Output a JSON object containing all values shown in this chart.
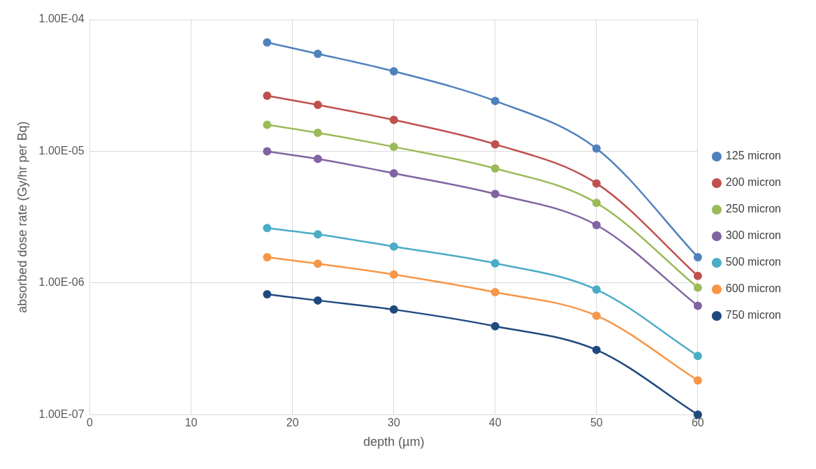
{
  "chart_data": {
    "type": "line",
    "xlabel": "depth (µm)",
    "ylabel": "absorbed dose rate (Gy/hr per Bq)",
    "x": [
      17.5,
      22.5,
      30,
      40,
      50,
      60
    ],
    "xlim": [
      0,
      60
    ],
    "xticks": [
      0,
      10,
      20,
      30,
      40,
      50,
      60
    ],
    "ylim": [
      1e-07,
      0.0001
    ],
    "yticks": [
      {
        "value": 1e-07,
        "label": "1.00E-07"
      },
      {
        "value": 1e-06,
        "label": "1.00E-06"
      },
      {
        "value": 1e-05,
        "label": "1.00E-05"
      },
      {
        "value": 0.0001,
        "label": "1.00E-04"
      }
    ],
    "log": "y",
    "grid": true,
    "legend": "right",
    "marker": "circle",
    "line_style": "solid",
    "series": [
      {
        "name": "125 micron",
        "color": "#4f81bd",
        "values": [
          6.7e-05,
          5.5e-05,
          4.05e-05,
          2.41e-05,
          1.05e-05,
          1.57e-06
        ]
      },
      {
        "name": "200 micron",
        "color": "#c0504d",
        "values": [
          2.64e-05,
          2.25e-05,
          1.73e-05,
          1.13e-05,
          5.7e-06,
          1.13e-06
        ]
      },
      {
        "name": "250 micron",
        "color": "#9bbb59",
        "values": [
          1.59e-05,
          1.38e-05,
          1.08e-05,
          7.4e-06,
          4.05e-06,
          9.2e-07
        ]
      },
      {
        "name": "300 micron",
        "color": "#8064a2",
        "values": [
          1e-05,
          8.75e-06,
          6.8e-06,
          4.74e-06,
          2.75e-06,
          6.7e-07
        ]
      },
      {
        "name": "500 micron",
        "color": "#4bacc6",
        "values": [
          2.61e-06,
          2.34e-06,
          1.89e-06,
          1.41e-06,
          8.9e-07,
          2.79e-07
        ]
      },
      {
        "name": "600 micron",
        "color": "#f79646",
        "values": [
          1.57e-06,
          1.4e-06,
          1.16e-06,
          8.5e-07,
          5.64e-07,
          1.82e-07
        ]
      },
      {
        "name": "750 micron",
        "color": "#1f497d",
        "values": [
          8.2e-07,
          7.36e-07,
          6.28e-07,
          4.69e-07,
          3.1e-07,
          1e-07
        ]
      }
    ]
  }
}
